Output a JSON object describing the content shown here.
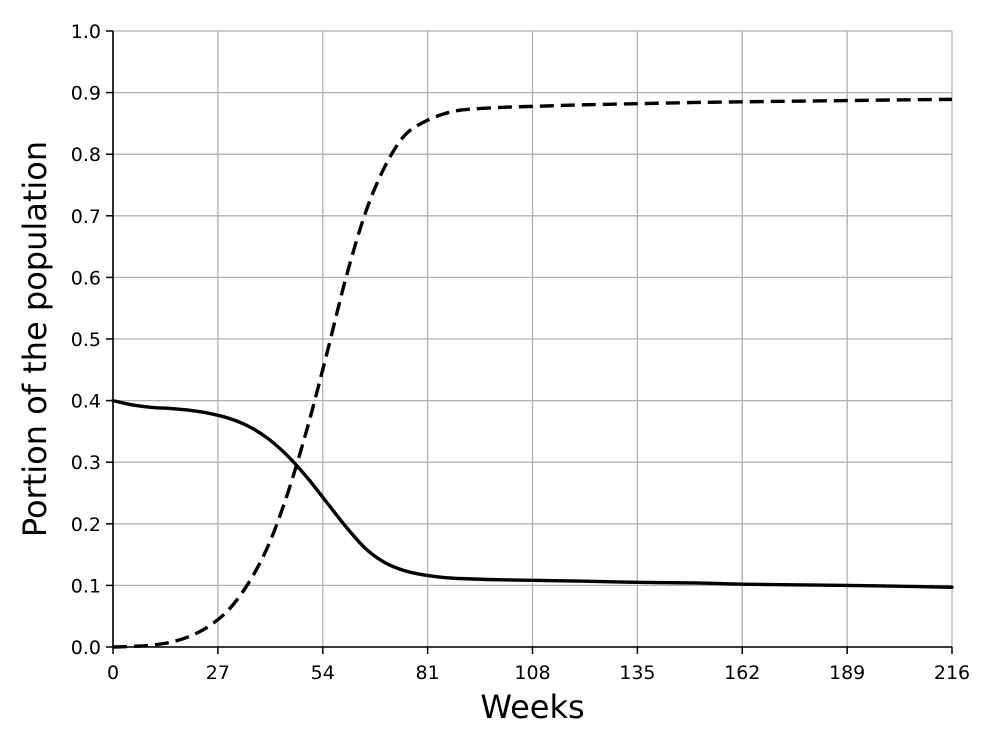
{
  "chart_data": {
    "type": "line",
    "title": "",
    "xlabel": "Weeks",
    "ylabel": "Portion of the population",
    "xlim": [
      0,
      216
    ],
    "ylim": [
      0.0,
      1.0
    ],
    "grid": true,
    "legend": "none",
    "x_ticks": [
      "0",
      "27",
      "54",
      "81",
      "108",
      "135",
      "162",
      "189",
      "216"
    ],
    "y_ticks": [
      "0.0",
      "0.1",
      "0.2",
      "0.3",
      "0.4",
      "0.5",
      "0.6",
      "0.7",
      "0.8",
      "0.9",
      "1.0"
    ],
    "x": [
      0,
      5,
      10,
      15,
      20,
      25,
      30,
      35,
      40,
      45,
      50,
      55,
      60,
      65,
      70,
      75,
      80,
      85,
      90,
      100,
      110,
      120,
      135,
      150,
      162,
      175,
      189,
      200,
      216
    ],
    "series": [
      {
        "style": "solid",
        "color": "#000000",
        "values": [
          0.4,
          0.393,
          0.389,
          0.387,
          0.384,
          0.379,
          0.371,
          0.358,
          0.338,
          0.31,
          0.275,
          0.235,
          0.195,
          0.16,
          0.137,
          0.124,
          0.117,
          0.113,
          0.111,
          0.109,
          0.108,
          0.107,
          0.105,
          0.104,
          0.102,
          0.101,
          0.1,
          0.099,
          0.097
        ]
      },
      {
        "style": "dashed",
        "color": "#000000",
        "values": [
          0.0,
          0.001,
          0.003,
          0.008,
          0.018,
          0.035,
          0.062,
          0.105,
          0.165,
          0.25,
          0.355,
          0.475,
          0.6,
          0.705,
          0.78,
          0.83,
          0.852,
          0.865,
          0.872,
          0.876,
          0.878,
          0.88,
          0.882,
          0.884,
          0.885,
          0.886,
          0.887,
          0.888,
          0.889
        ]
      }
    ]
  }
}
